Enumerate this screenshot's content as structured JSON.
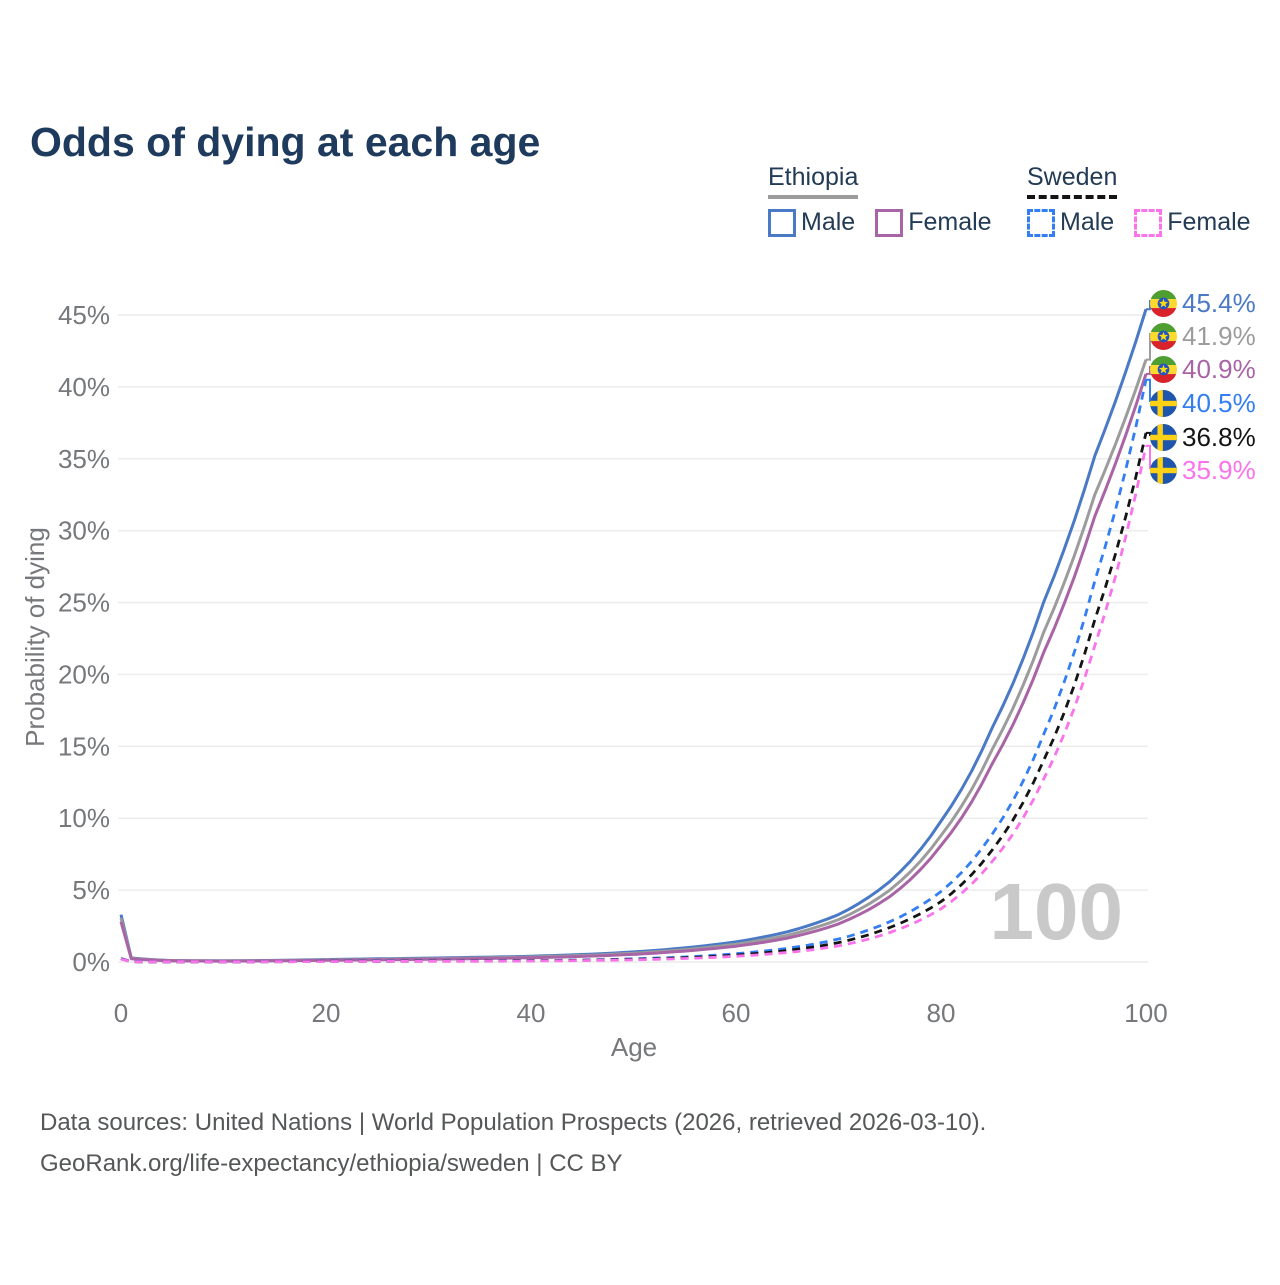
{
  "header": {
    "title": "Odds of dying at each age"
  },
  "legend": {
    "groups": [
      {
        "name": "Ethiopia",
        "line_style": "solid",
        "underline_color": "#9c9c9c",
        "items": [
          {
            "label": "Male",
            "color": "#4a79c5",
            "dashed": false
          },
          {
            "label": "Female",
            "color": "#a964a6",
            "dashed": false
          }
        ]
      },
      {
        "name": "Sweden",
        "line_style": "dashed",
        "underline_color": "#141414",
        "items": [
          {
            "label": "Male",
            "color": "#337ef2",
            "dashed": true
          },
          {
            "label": "Female",
            "color": "#f973ea",
            "dashed": true
          }
        ]
      }
    ]
  },
  "chart_data": {
    "type": "line",
    "title": "Odds of dying at each age",
    "xlabel": "Age",
    "ylabel": "Probability of dying",
    "unit": "%",
    "xlim": [
      0,
      100
    ],
    "ylim": [
      0,
      46
    ],
    "x_ticks": [
      0,
      20,
      40,
      60,
      80,
      100
    ],
    "y_ticks": [
      0,
      5,
      10,
      15,
      20,
      25,
      30,
      35,
      40,
      45
    ],
    "grid": "horizontal",
    "legend_position": "top-right",
    "watermark": "100",
    "ages": [
      0,
      1,
      5,
      10,
      15,
      20,
      25,
      30,
      35,
      40,
      45,
      50,
      55,
      60,
      65,
      70,
      75,
      80,
      85,
      90,
      95,
      100
    ],
    "series": [
      {
        "name": "Ethiopia Male",
        "country": "Ethiopia",
        "sex": "Male",
        "color": "#4a79c5",
        "dashed": false,
        "flag": "ethiopia",
        "end_value": 45.4,
        "end_label": "45.4%",
        "values": [
          3.3,
          0.28,
          0.1,
          0.08,
          0.11,
          0.17,
          0.22,
          0.27,
          0.33,
          0.4,
          0.52,
          0.7,
          0.98,
          1.4,
          2.1,
          3.3,
          5.6,
          9.8,
          16.3,
          25.0,
          35.2,
          45.4
        ]
      },
      {
        "name": "Ethiopia Both sexes",
        "country": "Ethiopia",
        "sex": "Both sexes",
        "color": "#9c9c9c",
        "dashed": false,
        "flag": "ethiopia",
        "end_value": 41.9,
        "end_label": "41.9%",
        "values": [
          3.05,
          0.25,
          0.09,
          0.07,
          0.1,
          0.14,
          0.18,
          0.23,
          0.28,
          0.35,
          0.45,
          0.61,
          0.86,
          1.24,
          1.86,
          2.95,
          5.0,
          8.8,
          14.8,
          22.9,
          32.5,
          41.9
        ]
      },
      {
        "name": "Ethiopia Female",
        "country": "Ethiopia",
        "sex": "Female",
        "color": "#a964a6",
        "dashed": false,
        "flag": "ethiopia",
        "end_value": 40.9,
        "end_label": "40.9%",
        "values": [
          2.8,
          0.23,
          0.08,
          0.06,
          0.08,
          0.12,
          0.15,
          0.19,
          0.24,
          0.3,
          0.39,
          0.53,
          0.76,
          1.1,
          1.66,
          2.65,
          4.55,
          8.1,
          13.8,
          21.5,
          31.0,
          40.9
        ]
      },
      {
        "name": "Sweden Male",
        "country": "Sweden",
        "sex": "Male",
        "color": "#337ef2",
        "dashed": true,
        "flag": "sweden",
        "end_value": 40.5,
        "end_label": "40.5%",
        "values": [
          0.25,
          0.03,
          0.01,
          0.01,
          0.03,
          0.06,
          0.07,
          0.07,
          0.08,
          0.1,
          0.14,
          0.22,
          0.35,
          0.58,
          0.95,
          1.6,
          2.8,
          4.9,
          8.9,
          15.8,
          26.5,
          40.5
        ]
      },
      {
        "name": "Sweden Both sexes",
        "country": "Sweden",
        "sex": "Both sexes",
        "color": "#141414",
        "dashed": true,
        "flag": "sweden",
        "end_value": 36.8,
        "end_label": "36.8%",
        "values": [
          0.22,
          0.02,
          0.01,
          0.01,
          0.02,
          0.05,
          0.05,
          0.06,
          0.07,
          0.09,
          0.12,
          0.18,
          0.29,
          0.48,
          0.8,
          1.35,
          2.4,
          4.2,
          7.8,
          14.0,
          23.8,
          36.8
        ]
      },
      {
        "name": "Sweden Female",
        "country": "Sweden",
        "sex": "Female",
        "color": "#f973ea",
        "dashed": true,
        "flag": "sweden",
        "end_value": 35.9,
        "end_label": "35.9%",
        "values": [
          0.2,
          0.02,
          0.01,
          0.01,
          0.02,
          0.03,
          0.04,
          0.04,
          0.05,
          0.07,
          0.1,
          0.15,
          0.24,
          0.4,
          0.66,
          1.12,
          2.05,
          3.7,
          7.0,
          12.7,
          22.0,
          35.9
        ]
      }
    ],
    "flag_colors": {
      "ethiopia": {
        "green": "#4f9e31",
        "yellow": "#fcd92f",
        "red": "#d8232a",
        "disc": "#2553c0",
        "star": "#fcdd09"
      },
      "sweden": {
        "field": "#1e56ad",
        "cross": "#fcd116"
      }
    }
  },
  "footer": {
    "line1": "Data sources: United Nations | World Population Prospects (2026, retrieved 2026-03-10).",
    "line2": "GeoRank.org/life-expectancy/ethiopia/sweden | CC BY"
  }
}
